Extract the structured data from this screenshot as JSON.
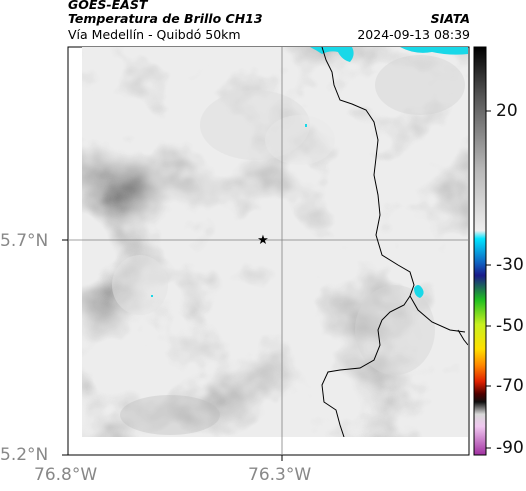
{
  "header": {
    "satellite": "GOES-EAST",
    "product": "Temperatura de Brillo CH13",
    "route": "Vía Medellín - Quibdó 50km",
    "agency": "SIATA",
    "timestamp": "2024-09-13 08:39"
  },
  "axes": {
    "y_ticks": [
      "5.7°N",
      "5.2°N"
    ],
    "x_ticks": [
      "76.8°W",
      "76.3°W"
    ]
  },
  "colorbar": {
    "ticks": [
      "20",
      "-30",
      "-50",
      "-70",
      "-90"
    ]
  },
  "colors": {
    "cold_cloud_cyan": "#19d8e8",
    "border_line": "#000000",
    "grid_line": "#808080"
  },
  "marker": {
    "icon": "star-icon"
  }
}
